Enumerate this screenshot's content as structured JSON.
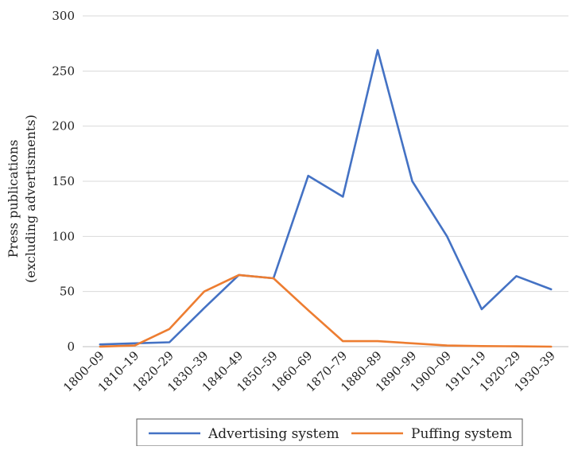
{
  "chart_data": {
    "type": "line",
    "title": "",
    "xlabel": "",
    "ylabel_lines": [
      "Press publications",
      "(excluding advertisments)"
    ],
    "ylim": [
      0,
      300
    ],
    "yticks": [
      0,
      50,
      100,
      150,
      200,
      250,
      300
    ],
    "grid": "horizontal",
    "legend_position": "bottom",
    "categories": [
      "1800–09",
      "1810–19",
      "1820–29",
      "1830–39",
      "1840–49",
      "1850–59",
      "1860–69",
      "1870–79",
      "1880–89",
      "1890–99",
      "1900–09",
      "1910–19",
      "1920–29",
      "1930–39"
    ],
    "series": [
      {
        "name": "Advertising system",
        "color": "#4472c4",
        "values": [
          2,
          3,
          4,
          35,
          65,
          62,
          155,
          136,
          269,
          150,
          100,
          34,
          64,
          52
        ]
      },
      {
        "name": "Puffing system",
        "color": "#ed7d31",
        "values": [
          0,
          1,
          16,
          50,
          65,
          62,
          33,
          5,
          5,
          3,
          1,
          0.5,
          0.3,
          0
        ]
      }
    ]
  }
}
